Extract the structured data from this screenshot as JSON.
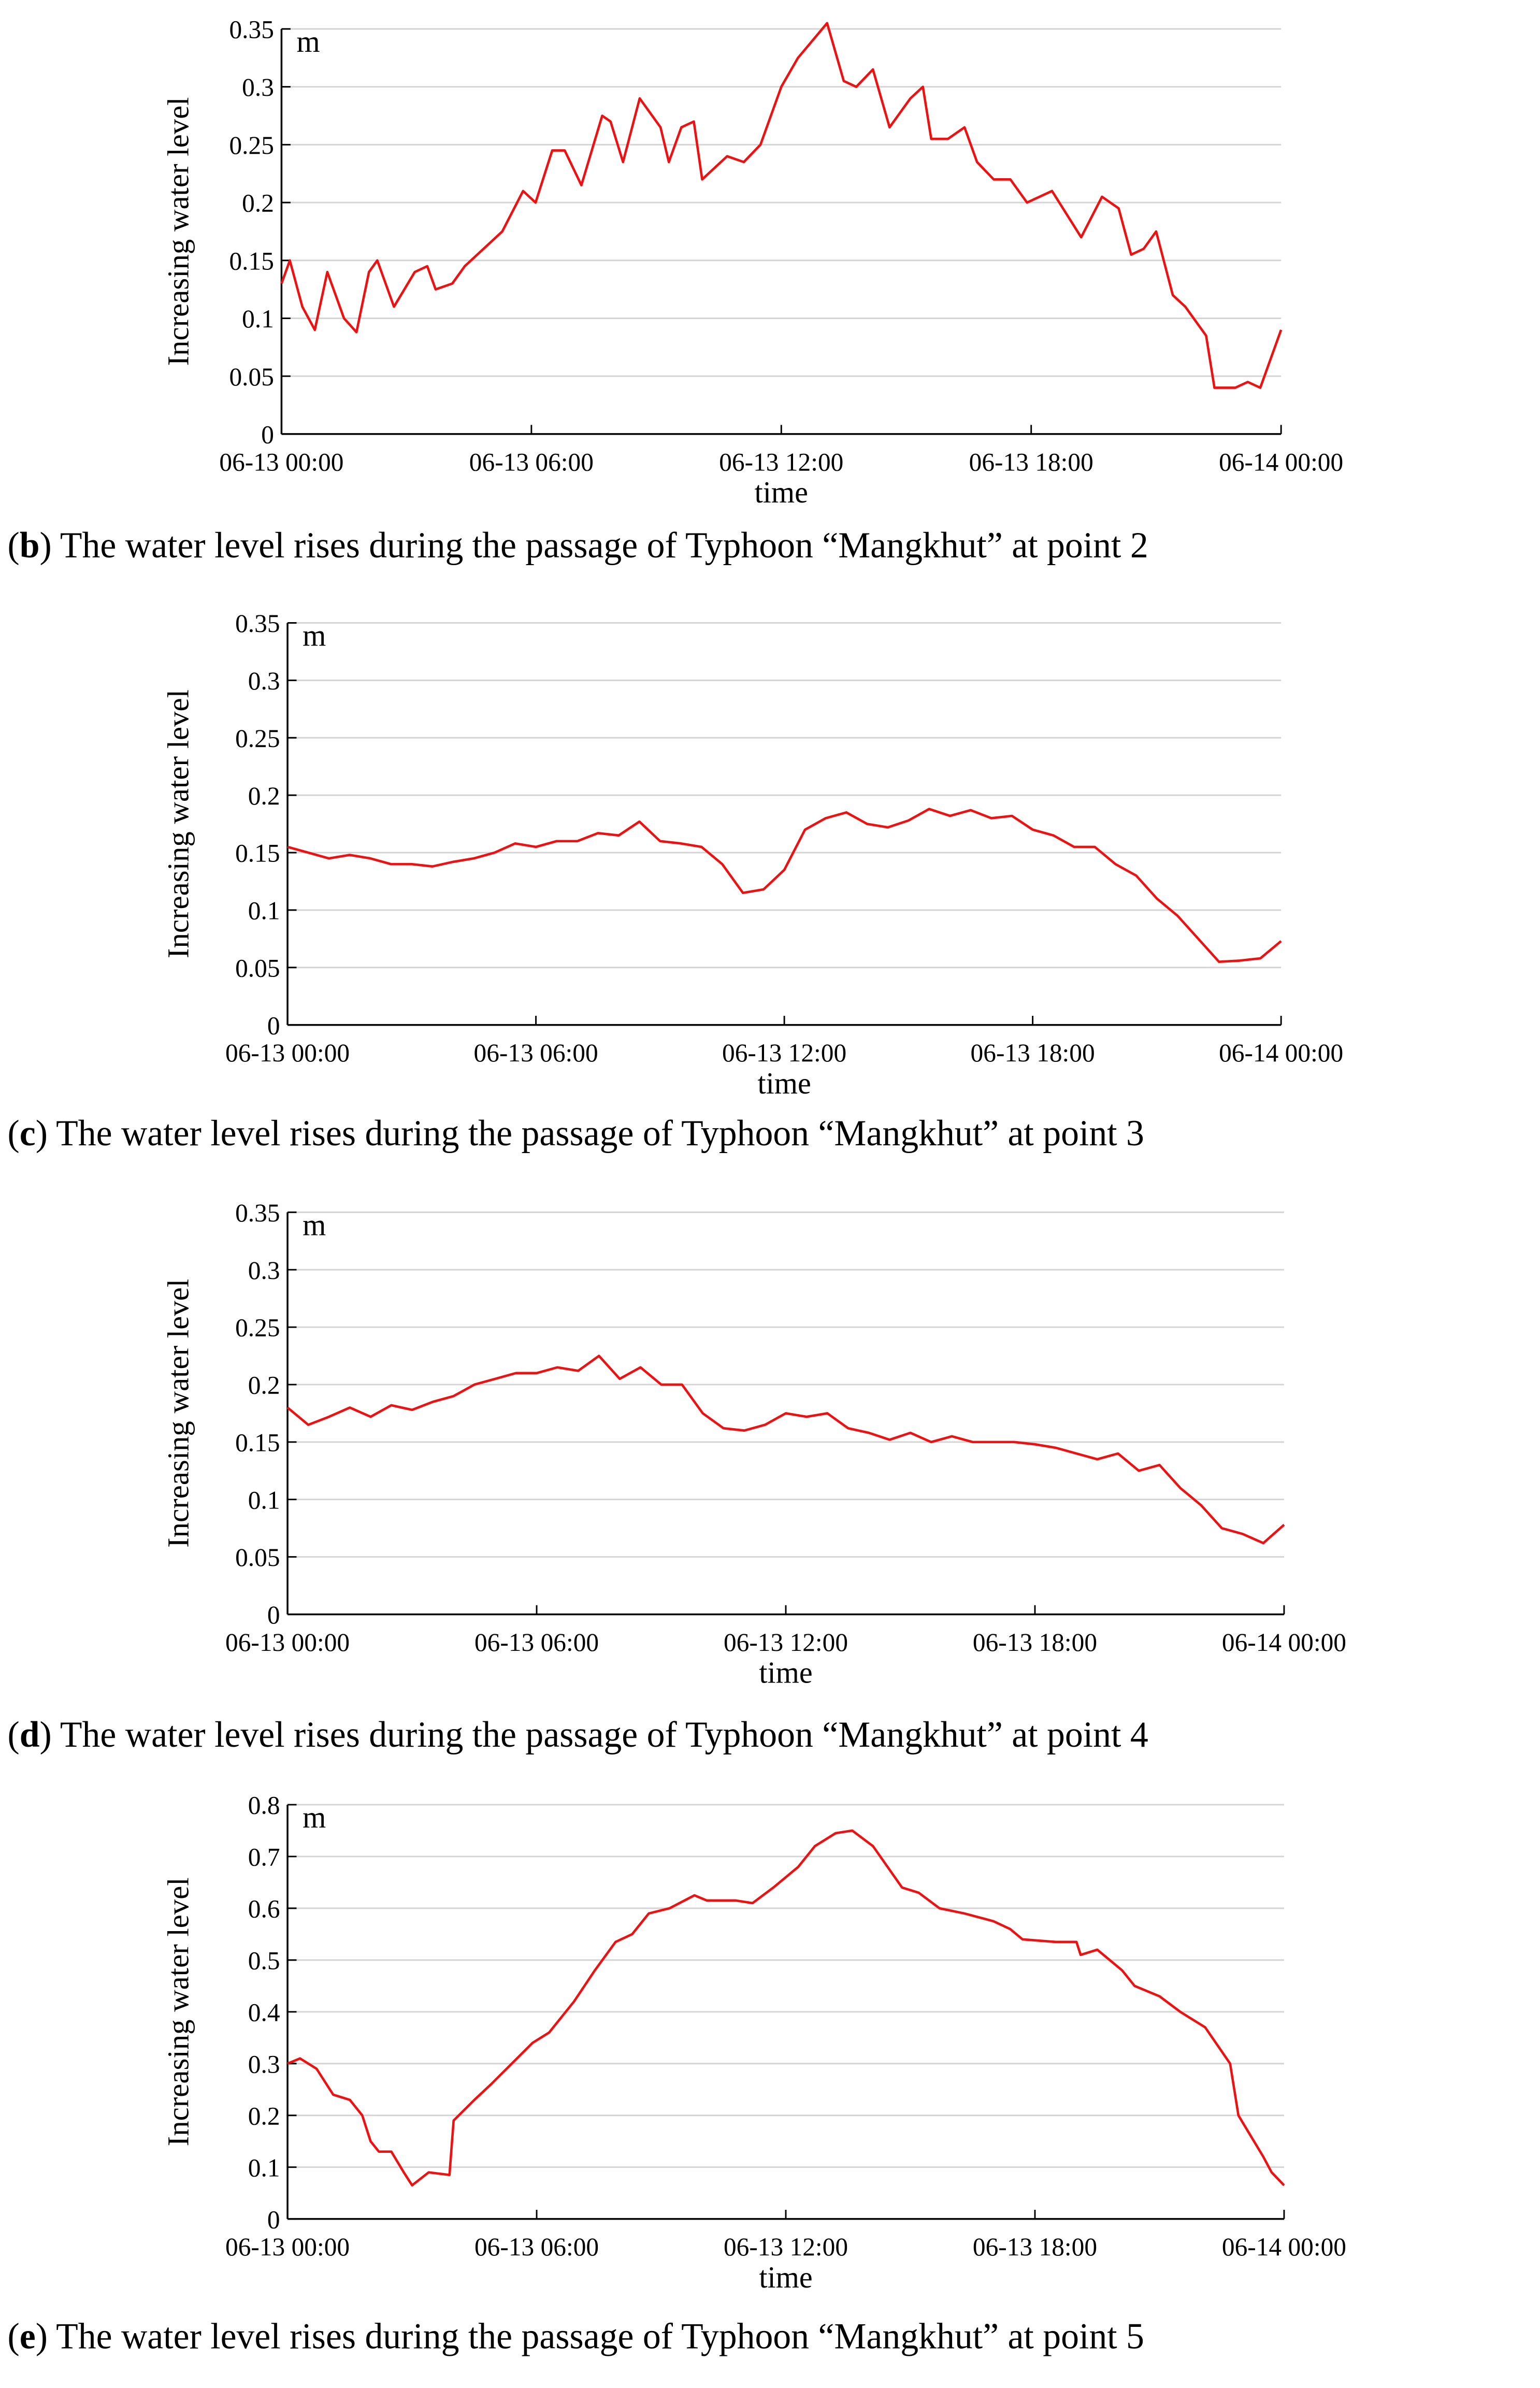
{
  "chart_data": [
    {
      "type": "line",
      "caption_parts": [
        "(",
        "b",
        ") The water level rises during the passage of Typhoon “Mangkhut” at point 2"
      ],
      "ylabel": "Increasing water level",
      "unit_label": "m",
      "xlabel": "time",
      "color": "#ee1111",
      "grid": true,
      "xlim": [
        0,
        24
      ],
      "xticks": [
        {
          "value": 0,
          "label": "06-13 00:00"
        },
        {
          "value": 6,
          "label": "06-13 06:00"
        },
        {
          "value": 12,
          "label": "06-13 12:00"
        },
        {
          "value": 18,
          "label": "06-13 18:00"
        },
        {
          "value": 24,
          "label": "06-14 00:00"
        }
      ],
      "ylim": [
        0,
        0.35
      ],
      "yticks": [
        0,
        0.05,
        0.1,
        0.15,
        0.2,
        0.25,
        0.3,
        0.35
      ],
      "x": [
        0,
        0.2,
        0.5,
        0.8,
        1.1,
        1.5,
        1.8,
        2.1,
        2.3,
        2.7,
        3.2,
        3.5,
        3.7,
        4.1,
        4.4,
        5.0,
        5.3,
        5.8,
        6.1,
        6.5,
        6.8,
        7.2,
        7.7,
        7.9,
        8.2,
        8.6,
        9.1,
        9.3,
        9.6,
        9.9,
        10.1,
        10.7,
        11.1,
        11.5,
        12.0,
        12.4,
        13.1,
        13.5,
        13.8,
        14.2,
        14.6,
        15.1,
        15.4,
        15.6,
        16.0,
        16.4,
        16.7,
        17.1,
        17.5,
        17.9,
        18.5,
        19.2,
        19.7,
        20.1,
        20.4,
        20.7,
        21.0,
        21.4,
        21.7,
        22.2,
        22.4,
        22.9,
        23.2,
        23.5,
        24.0
      ],
      "values": [
        0.13,
        0.15,
        0.11,
        0.09,
        0.14,
        0.1,
        0.088,
        0.14,
        0.15,
        0.11,
        0.14,
        0.145,
        0.125,
        0.13,
        0.145,
        0.165,
        0.175,
        0.21,
        0.2,
        0.245,
        0.245,
        0.215,
        0.275,
        0.27,
        0.235,
        0.29,
        0.265,
        0.235,
        0.265,
        0.27,
        0.22,
        0.24,
        0.235,
        0.25,
        0.3,
        0.325,
        0.355,
        0.305,
        0.3,
        0.315,
        0.265,
        0.29,
        0.3,
        0.255,
        0.255,
        0.265,
        0.235,
        0.22,
        0.22,
        0.2,
        0.21,
        0.17,
        0.205,
        0.195,
        0.155,
        0.16,
        0.175,
        0.12,
        0.11,
        0.085,
        0.04,
        0.04,
        0.045,
        0.04,
        0.09
      ]
    },
    {
      "type": "line",
      "caption_parts": [
        "(",
        "c",
        ") The water level rises during the passage of Typhoon “Mangkhut” at point 3"
      ],
      "ylabel": "Increasing water level",
      "unit_label": "m",
      "xlabel": "time",
      "color": "#ee1111",
      "grid": true,
      "xlim": [
        0,
        24
      ],
      "xticks": [
        {
          "value": 0,
          "label": "06-13 00:00"
        },
        {
          "value": 6,
          "label": "06-13 06:00"
        },
        {
          "value": 12,
          "label": "06-13 12:00"
        },
        {
          "value": 18,
          "label": "06-13 18:00"
        },
        {
          "value": 24,
          "label": "06-14 00:00"
        }
      ],
      "ylim": [
        0,
        0.35
      ],
      "yticks": [
        0,
        0.05,
        0.1,
        0.15,
        0.2,
        0.25,
        0.3,
        0.35
      ],
      "x": [
        0,
        0.5,
        1,
        1.5,
        2,
        2.5,
        3,
        3.5,
        4,
        4.5,
        5,
        5.5,
        6,
        6.5,
        7,
        7.5,
        8,
        8.5,
        9,
        9.5,
        10,
        10.5,
        11,
        11.5,
        12,
        12.5,
        13,
        13.5,
        14,
        14.5,
        15,
        15.5,
        16,
        16.5,
        17,
        17.5,
        18,
        18.5,
        19,
        19.5,
        20,
        20.5,
        21,
        21.5,
        22,
        22.5,
        23,
        23.5,
        24
      ],
      "values": [
        0.155,
        0.15,
        0.145,
        0.148,
        0.145,
        0.14,
        0.14,
        0.138,
        0.142,
        0.145,
        0.15,
        0.158,
        0.155,
        0.16,
        0.16,
        0.167,
        0.165,
        0.177,
        0.16,
        0.158,
        0.155,
        0.14,
        0.115,
        0.118,
        0.135,
        0.17,
        0.18,
        0.185,
        0.175,
        0.172,
        0.178,
        0.188,
        0.182,
        0.187,
        0.18,
        0.182,
        0.17,
        0.165,
        0.155,
        0.155,
        0.14,
        0.13,
        0.11,
        0.095,
        0.075,
        0.055,
        0.056,
        0.058,
        0.073
      ]
    },
    {
      "type": "line",
      "caption_parts": [
        "(",
        "d",
        ") The water level rises during the passage of Typhoon “Mangkhut” at point 4"
      ],
      "ylabel": "Increasing water level",
      "unit_label": "m",
      "xlabel": "time",
      "color": "#ee1111",
      "grid": true,
      "xlim": [
        0,
        24
      ],
      "xticks": [
        {
          "value": 0,
          "label": "06-13 00:00"
        },
        {
          "value": 6,
          "label": "06-13 06:00"
        },
        {
          "value": 12,
          "label": "06-13 12:00"
        },
        {
          "value": 18,
          "label": "06-13 18:00"
        },
        {
          "value": 24,
          "label": "06-14 00:00"
        }
      ],
      "ylim": [
        0,
        0.35
      ],
      "yticks": [
        0,
        0.05,
        0.1,
        0.15,
        0.2,
        0.25,
        0.3,
        0.35
      ],
      "x": [
        0,
        0.5,
        1,
        1.5,
        2,
        2.5,
        3,
        3.5,
        4,
        4.5,
        5,
        5.5,
        6,
        6.5,
        7,
        7.5,
        8,
        8.5,
        9,
        9.5,
        10,
        10.5,
        11,
        11.5,
        12,
        12.5,
        13,
        13.5,
        14,
        14.5,
        15,
        15.5,
        16,
        16.5,
        17,
        17.5,
        18,
        18.5,
        19,
        19.5,
        20,
        20.5,
        21,
        21.5,
        22,
        22.5,
        23,
        23.5,
        24
      ],
      "values": [
        0.18,
        0.165,
        0.172,
        0.18,
        0.172,
        0.182,
        0.178,
        0.185,
        0.19,
        0.2,
        0.205,
        0.21,
        0.21,
        0.215,
        0.212,
        0.225,
        0.205,
        0.215,
        0.2,
        0.2,
        0.175,
        0.162,
        0.16,
        0.165,
        0.175,
        0.172,
        0.175,
        0.162,
        0.158,
        0.152,
        0.158,
        0.15,
        0.155,
        0.15,
        0.15,
        0.15,
        0.148,
        0.145,
        0.14,
        0.135,
        0.14,
        0.125,
        0.13,
        0.11,
        0.095,
        0.075,
        0.07,
        0.062,
        0.078
      ]
    },
    {
      "type": "line",
      "caption_parts": [
        "(",
        "e",
        ") The water level rises during the passage of Typhoon “Mangkhut” at point 5"
      ],
      "ylabel": "Increasing water level",
      "unit_label": "m",
      "xlabel": "time",
      "color": "#ee1111",
      "grid": true,
      "xlim": [
        0,
        24
      ],
      "xticks": [
        {
          "value": 0,
          "label": "06-13 00:00"
        },
        {
          "value": 6,
          "label": "06-13 06:00"
        },
        {
          "value": 12,
          "label": "06-13 12:00"
        },
        {
          "value": 18,
          "label": "06-13 18:00"
        },
        {
          "value": 24,
          "label": "06-14 00:00"
        }
      ],
      "ylim": [
        0,
        0.8
      ],
      "yticks": [
        0,
        0.1,
        0.2,
        0.3,
        0.4,
        0.5,
        0.6,
        0.7,
        0.8
      ],
      "x": [
        0,
        0.3,
        0.7,
        1.1,
        1.5,
        1.8,
        2.0,
        2.2,
        2.5,
        2.8,
        3.0,
        3.4,
        3.9,
        4.0,
        4.5,
        4.9,
        5.4,
        5.9,
        6.3,
        6.9,
        7.4,
        7.9,
        8.3,
        8.7,
        9.2,
        9.8,
        10.1,
        10.8,
        11.2,
        11.7,
        12.3,
        12.7,
        13.2,
        13.6,
        14.1,
        14.8,
        15.2,
        15.7,
        16.3,
        17.0,
        17.4,
        17.7,
        18.5,
        19.0,
        19.1,
        19.5,
        20.1,
        20.4,
        21.0,
        21.5,
        22.1,
        22.7,
        22.9,
        23.2,
        23.5,
        23.7,
        24.0
      ],
      "values": [
        0.3,
        0.31,
        0.29,
        0.24,
        0.23,
        0.2,
        0.15,
        0.13,
        0.13,
        0.09,
        0.065,
        0.09,
        0.085,
        0.19,
        0.23,
        0.26,
        0.3,
        0.34,
        0.36,
        0.42,
        0.48,
        0.535,
        0.55,
        0.59,
        0.6,
        0.625,
        0.615,
        0.615,
        0.61,
        0.64,
        0.68,
        0.72,
        0.745,
        0.75,
        0.72,
        0.64,
        0.63,
        0.6,
        0.59,
        0.575,
        0.56,
        0.54,
        0.535,
        0.535,
        0.51,
        0.52,
        0.48,
        0.45,
        0.43,
        0.4,
        0.37,
        0.3,
        0.2,
        0.16,
        0.12,
        0.09,
        0.065
      ]
    }
  ]
}
